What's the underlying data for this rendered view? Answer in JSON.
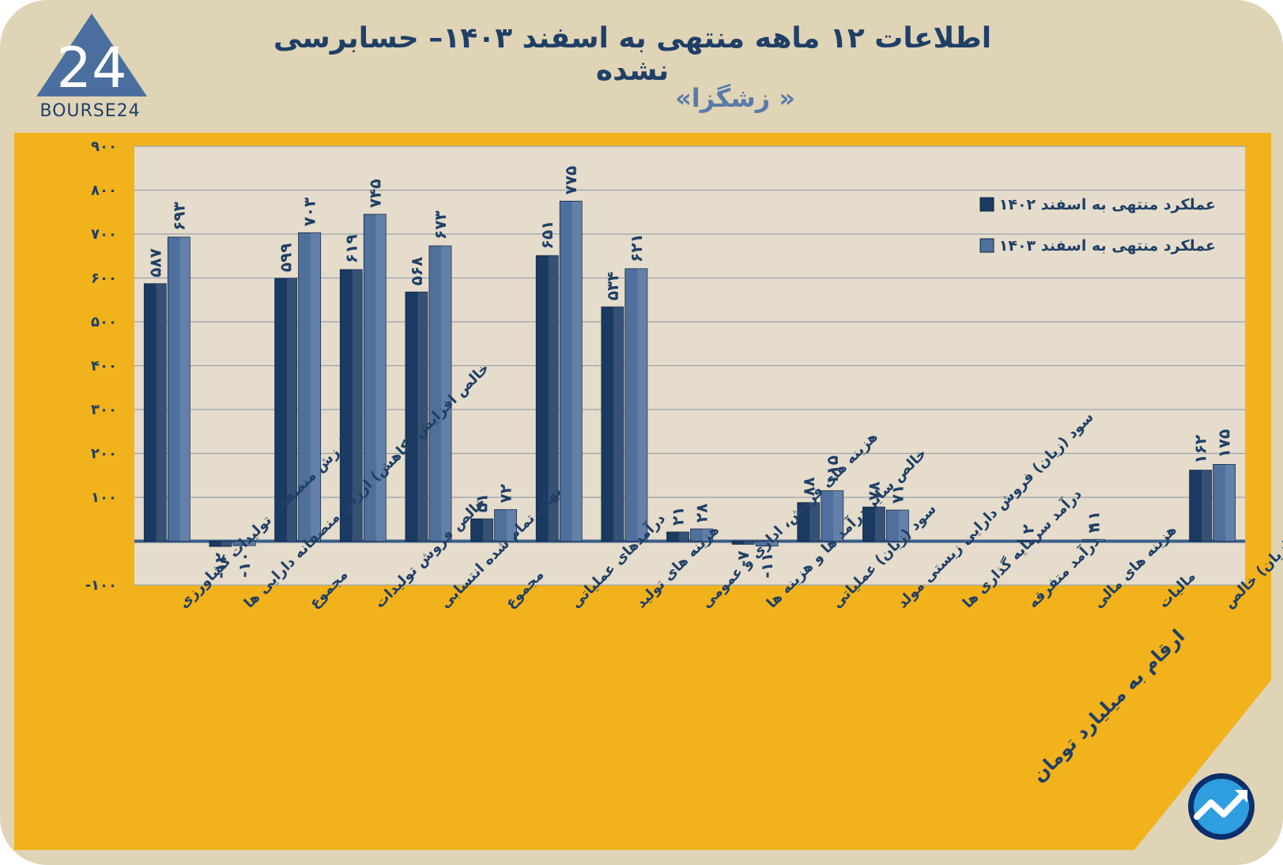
{
  "header": {
    "title": "اطلاعات ۱۲ ماهه منتهی به اسفند ۱۴۰۳– حسابرسی نشده",
    "subtitle": "« زشگزا»"
  },
  "logo": {
    "text": "BOURSE24",
    "numeral": "24"
  },
  "footer": {
    "unit_note": "ارقام به میلیارد تومان"
  },
  "colors": {
    "background": "#e0d4b7",
    "panel": "#f2b21b",
    "plot": "#e5dccb",
    "series_1402": "#1b3a61",
    "series_1403": "#4f6f9c",
    "text": "#1f3f66"
  },
  "chart_data": {
    "type": "bar",
    "title": "اطلاعات ۱۲ ماهه منتهی به اسفند ۱۴۰۳– حسابرسی نشده",
    "ylim": [
      -100,
      900
    ],
    "yticks": [
      -100,
      100,
      200,
      300,
      400,
      500,
      600,
      700,
      800,
      900
    ],
    "ytick_labels": [
      "-۱۰۰",
      "۱۰۰",
      "۲۰۰",
      "۳۰۰",
      "۴۰۰",
      "۵۰۰",
      "۶۰۰",
      "۷۰۰",
      "۸۰۰",
      "۹۰۰"
    ],
    "grid": true,
    "legend": "top-right",
    "categories": [
      "ارزش منصفانه تولیدات کشاورزی",
      "خالص افزایش (کاهش) ارزش منصفانه دارایی ها",
      "مجموع",
      "خالص فروش تولیدات",
      "بهای تمام شده انتسابی",
      "مجموع",
      "درآمدهای عملیاتی",
      "هزینه های تولید",
      "هزینه های فروش، اداری و عمومی",
      "خالص سایر درآمد ها و هزینه ها",
      "سود (زیان) عملیاتی",
      "سود (زیان) فروش دارایی زیستی مولد",
      "درآمد سرمایه گذاری ها",
      "درآمد متفرقه",
      "هزینه های مالی",
      "مالیات",
      "سود (زیان) خالص"
    ],
    "series": [
      {
        "name": "عملکرد منتهی به اسفند ۱۴۰۲",
        "values": [
          587,
          -12,
          599,
          619,
          568,
          51,
          651,
          534,
          21,
          -7,
          88,
          78,
          0,
          0,
          0,
          0,
          162
        ],
        "labels": [
          "۵۸۷",
          "-۱۲",
          "۵۹۹",
          "۶۱۹",
          "۵۶۸",
          "۵۱",
          "۶۵۱",
          "۵۳۴",
          "۲۱",
          "-۷",
          "۸۸",
          "۷۸",
          "",
          "",
          "",
          "",
          "۱۶۲"
        ]
      },
      {
        "name": "عملکرد منتهی به اسفند ۱۴۰۳",
        "values": [
          693,
          -10,
          703,
          745,
          673,
          72,
          775,
          621,
          28,
          -11,
          115,
          71,
          0,
          2,
          4,
          0,
          175
        ],
        "labels": [
          "۶۹۳",
          "-۱۰",
          "۷۰۳",
          "۷۴۵",
          "۶۷۳",
          "۷۲",
          "۷۷۵",
          "۶۲۱",
          "۲۸",
          "-۱۱",
          "۱۱۵",
          "۷۱",
          "",
          "۲",
          "۴",
          "",
          "۱۷۵"
        ]
      }
    ],
    "extra_labels": [
      {
        "category_index": 14,
        "text": "۱۱"
      }
    ]
  }
}
